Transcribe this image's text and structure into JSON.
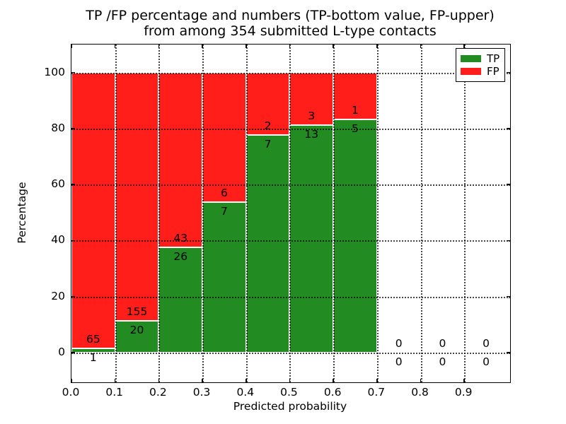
{
  "title": {
    "line1": "TP /FP percentage and numbers (TP-bottom value, FP-upper)",
    "line2": "from among 354 submitted L-type contacts"
  },
  "chart_data": {
    "type": "bar",
    "stacked": true,
    "title": "TP /FP percentage and numbers (TP-bottom value, FP-upper) from among 354 submitted L-type contacts",
    "xlabel": "Predicted probability",
    "ylabel": "Percentage",
    "total_contacts": 354,
    "bin_width": 0.1,
    "bins_start": [
      0.0,
      0.1,
      0.2,
      0.3,
      0.4,
      0.5,
      0.6,
      0.7,
      0.8,
      0.9
    ],
    "series": [
      {
        "name": "TP",
        "color": "#228b22",
        "counts": [
          1,
          20,
          26,
          7,
          7,
          13,
          5,
          0,
          0,
          0
        ]
      },
      {
        "name": "FP",
        "color": "#ff1e19",
        "counts": [
          65,
          155,
          43,
          6,
          2,
          3,
          1,
          0,
          0,
          0
        ]
      }
    ],
    "tp_percentages": [
      1.5,
      11.4,
      37.7,
      53.8,
      77.8,
      81.2,
      83.3,
      0,
      0,
      0
    ],
    "bar_total_percent": 100,
    "xticks": [
      "0.0",
      "0.1",
      "0.2",
      "0.3",
      "0.4",
      "0.5",
      "0.6",
      "0.7",
      "0.8",
      "0.9"
    ],
    "yticks": [
      "0",
      "20",
      "40",
      "60",
      "80",
      "100"
    ],
    "xlim": [
      0,
      1.005
    ],
    "ylim": [
      -10.6,
      110
    ],
    "grid": true,
    "grid_style": "dotted",
    "legend": {
      "position": "upper right",
      "entries": [
        {
          "label": "TP",
          "color": "#228b22"
        },
        {
          "label": "FP",
          "color": "#ff1e19"
        }
      ]
    }
  }
}
